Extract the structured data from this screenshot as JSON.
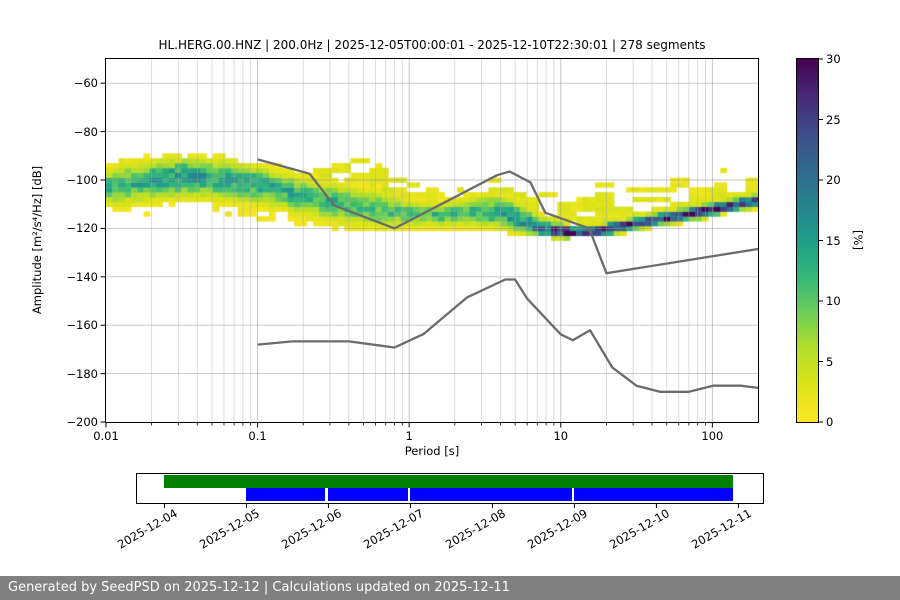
{
  "chart_data": {
    "type": "heatmap",
    "title": "HL.HERG.00.HNZ | 200.0Hz | 2025-12-05T00:00:01 - 2025-12-10T22:30:01 | 278 segments",
    "xlabel": "Period [s]",
    "ylabel": "Amplitude [m²/s⁴/Hz] [dB]",
    "xscale": "log",
    "xlim": [
      0.01,
      200
    ],
    "ylim": [
      -200,
      -50
    ],
    "x_ticks": [
      0.01,
      0.1,
      1,
      10,
      100
    ],
    "x_tick_labels": [
      "0.01",
      "0.1",
      "1",
      "10",
      "100"
    ],
    "y_ticks": [
      -60,
      -80,
      -100,
      -120,
      -140,
      -160,
      -180,
      -200
    ],
    "y_tick_labels": [
      "−60",
      "−80",
      "−100",
      "−120",
      "−140",
      "−160",
      "−180",
      "−200"
    ],
    "grid": true,
    "grid_color": "#b0b0b0",
    "colorbar": {
      "label": "[%]",
      "cmap": "viridis_r",
      "lim": [
        0,
        30
      ],
      "ticks": [
        0,
        5,
        10,
        15,
        20,
        25,
        30
      ],
      "tick_labels": [
        "0",
        "5",
        "10",
        "15",
        "20",
        "25",
        "30"
      ]
    },
    "ppsd_distribution": {
      "description": "PPSD probability histogram: per period, modal amplitude (dB), peak probability (%), gaussian spreads (dB) and sparse-scatter envelope (dB)",
      "periods_s": [
        0.01,
        0.02,
        0.035,
        0.06,
        0.1,
        0.15,
        0.25,
        0.4,
        0.65,
        1.0,
        1.6,
        2.5,
        4.0,
        5.5,
        8.0,
        12,
        18,
        30,
        50,
        80,
        120,
        200
      ],
      "mode_db": [
        -103,
        -99.5,
        -98,
        -99,
        -101.5,
        -104,
        -107.5,
        -110.5,
        -112.5,
        -114,
        -114.5,
        -113.5,
        -113.5,
        -117,
        -120.5,
        -121.5,
        -121,
        -118,
        -115.5,
        -113.5,
        -111,
        -108.5
      ],
      "peak_percent": [
        12,
        14,
        16,
        15,
        14,
        13,
        13,
        12,
        11,
        11,
        12,
        13,
        14,
        16,
        24,
        30,
        30,
        30,
        30,
        30,
        29,
        26
      ],
      "sigma_up_db": [
        4.5,
        4.5,
        4.2,
        4.0,
        4.0,
        4.0,
        4.2,
        4.5,
        4.5,
        3.2,
        2.8,
        3.5,
        4.5,
        4.0,
        2.0,
        1.6,
        1.5,
        1.5,
        1.5,
        1.6,
        1.6,
        1.7
      ],
      "sigma_down_db": [
        4.5,
        5.0,
        5.2,
        5.0,
        4.8,
        4.8,
        4.8,
        4.5,
        4.0,
        3.0,
        2.6,
        3.0,
        3.5,
        2.8,
        1.7,
        1.5,
        1.4,
        1.4,
        1.4,
        1.5,
        1.5,
        1.6
      ],
      "scatter_top_db": [
        -93,
        -89,
        -88,
        -90,
        -93,
        -94,
        -92,
        -90,
        -87.5,
        -97,
        -103,
        -101,
        -98,
        -99,
        -103,
        -101,
        -96,
        -95,
        -98,
        -101,
        -95,
        -87.5
      ],
      "bottom_db": [
        -116,
        -116.5,
        -117,
        -117.5,
        -119,
        -120,
        -121,
        -122,
        -122.5,
        -123,
        -123,
        -123,
        -123,
        -123.5,
        -124,
        -124,
        -123.5,
        -121.5,
        -119.5,
        -117,
        -115.5,
        -113.5
      ]
    },
    "noise_models": {
      "color": "#6b6b6b",
      "nhnm": [
        [
          0.1,
          -91.5
        ],
        [
          0.22,
          -97.4
        ],
        [
          0.32,
          -110.5
        ],
        [
          0.8,
          -120.0
        ],
        [
          3.8,
          -98.0
        ],
        [
          4.6,
          -96.5
        ],
        [
          6.3,
          -101.0
        ],
        [
          7.9,
          -113.5
        ],
        [
          15.4,
          -120.0
        ],
        [
          20.0,
          -138.5
        ],
        [
          200.0,
          -128.5
        ]
      ],
      "nlnm": [
        [
          0.1,
          -168.0
        ],
        [
          0.17,
          -166.7
        ],
        [
          0.4,
          -166.7
        ],
        [
          0.8,
          -169.2
        ],
        [
          1.24,
          -163.7
        ],
        [
          2.4,
          -148.6
        ],
        [
          4.3,
          -141.1
        ],
        [
          5.0,
          -141.1
        ],
        [
          6.0,
          -149.0
        ],
        [
          10.0,
          -163.8
        ],
        [
          12.0,
          -166.2
        ],
        [
          15.6,
          -162.1
        ],
        [
          21.9,
          -177.5
        ],
        [
          31.6,
          -185.0
        ],
        [
          45.0,
          -187.5
        ],
        [
          70.0,
          -187.5
        ],
        [
          101.0,
          -185.0
        ],
        [
          154.0,
          -185.0
        ],
        [
          200.0,
          -185.9
        ]
      ]
    }
  },
  "timeline": {
    "axis_range_days": [
      -0.335,
      7.3
    ],
    "tick_labels": [
      "2025-12-04",
      "2025-12-05",
      "2025-12-06",
      "2025-12-07",
      "2025-12-08",
      "2025-12-09",
      "2025-12-10",
      "2025-12-11"
    ],
    "green_bar": {
      "color": "#008000",
      "start_day": 0.0,
      "end_day": 6.94
    },
    "blue_bar": {
      "color": "#0000ff",
      "segments_days": [
        [
          0.99,
          1.955
        ],
        [
          1.99,
          2.97
        ],
        [
          3.0,
          4.97
        ],
        [
          5.0,
          6.94
        ]
      ]
    }
  },
  "footer": {
    "text": "Generated by SeedPSD on 2025-12-12 | Calculations updated on 2025-12-11",
    "bg_color": "#808080",
    "text_color": "#ffffff"
  }
}
